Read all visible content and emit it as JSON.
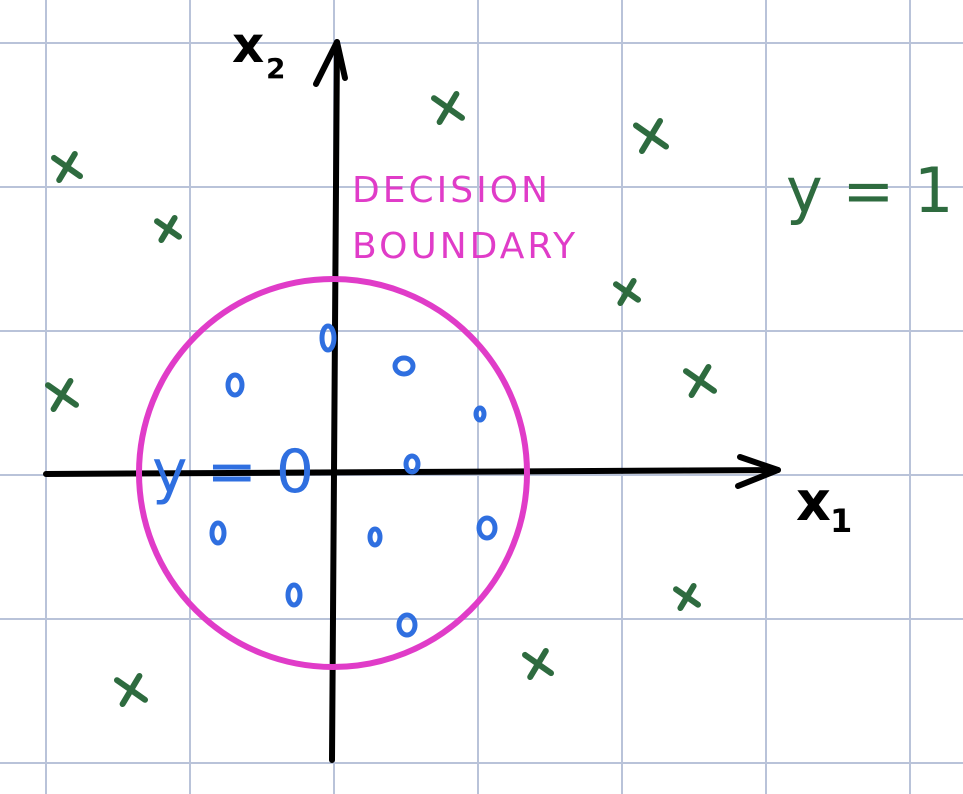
{
  "labels": {
    "x1_axis": "x",
    "x1_sub": "1",
    "x2_axis": "x",
    "x2_sub": "2",
    "boundary_line1": "DECISION",
    "boundary_line2": "BOUNDARY",
    "class_zero": "y = 0",
    "class_one": "y = 1"
  },
  "colors": {
    "grid": "#b9c3d9",
    "axis": "#000000",
    "boundary": "#e03cc8",
    "class_zero": "#2f6fe0",
    "class_one": "#2e6b3f"
  },
  "markers": {
    "class_zero_symbol": "o",
    "class_one_symbol": "x"
  }
}
